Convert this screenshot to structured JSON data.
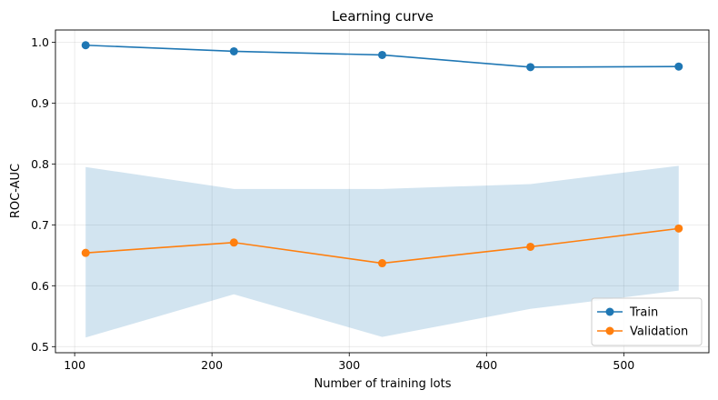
{
  "chart_data": {
    "type": "line",
    "title": "Learning curve",
    "xlabel": "Number of training lots",
    "ylabel": "ROC-AUC",
    "x": [
      108,
      216,
      324,
      432,
      540
    ],
    "series": [
      {
        "name": "Train",
        "values": [
          0.995,
          0.985,
          0.979,
          0.959,
          0.96
        ],
        "color": "#1f77b4",
        "marker": "circle"
      },
      {
        "name": "Validation",
        "values": [
          0.654,
          0.671,
          0.637,
          0.664,
          0.694
        ],
        "color": "#ff7f0e",
        "marker": "circle",
        "band": {
          "lower": [
            0.515,
            0.586,
            0.516,
            0.562,
            0.592
          ],
          "upper": [
            0.795,
            0.759,
            0.759,
            0.767,
            0.797
          ],
          "color": "#1f77b4",
          "opacity": 0.2
        }
      }
    ],
    "xlim": [
      86,
      562
    ],
    "ylim": [
      0.49,
      1.02
    ],
    "xticks": [
      100,
      200,
      300,
      400,
      500
    ],
    "yticks": [
      0.5,
      0.6,
      0.7,
      0.8,
      0.9,
      1.0
    ],
    "ytick_labels": [
      "0.5",
      "0.6",
      "0.7",
      "0.8",
      "0.9",
      "1.0"
    ],
    "grid": true,
    "legend_position": "lower-right"
  }
}
